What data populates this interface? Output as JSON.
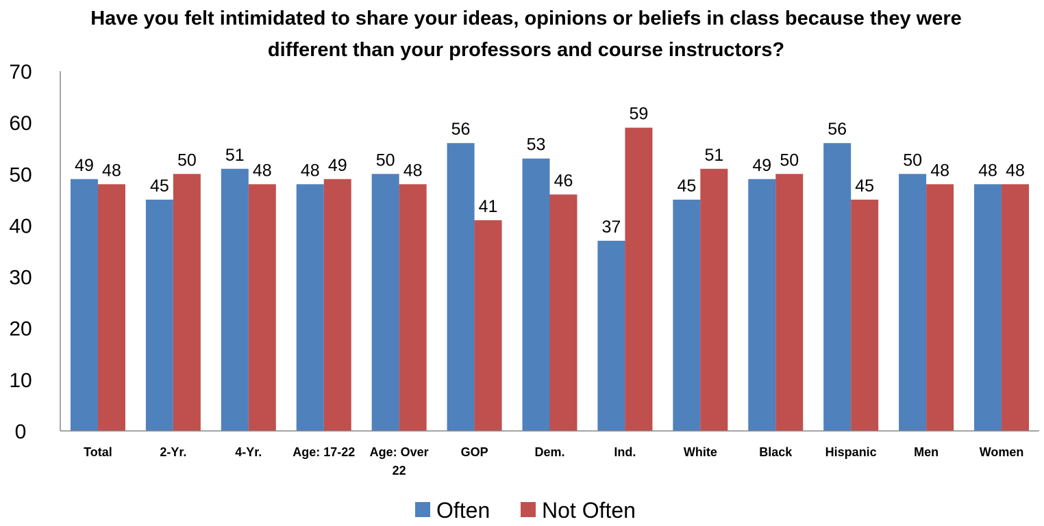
{
  "chart_data": {
    "type": "bar",
    "title_lines": [
      "Have you felt intimidated to share your ideas, opinions or beliefs in class because they were",
      "different  than your professors and course instructors?"
    ],
    "categories": [
      [
        "Total"
      ],
      [
        "2-Yr."
      ],
      [
        "4-Yr."
      ],
      [
        "Age: 17-22"
      ],
      [
        "Age: Over",
        "22"
      ],
      [
        "GOP"
      ],
      [
        "Dem."
      ],
      [
        "Ind."
      ],
      [
        "White"
      ],
      [
        "Black"
      ],
      [
        "Hispanic"
      ],
      [
        "Men"
      ],
      [
        "Women"
      ]
    ],
    "series": [
      {
        "name": "Often",
        "color": "#4F81BD",
        "values": [
          49,
          45,
          51,
          48,
          50,
          56,
          53,
          37,
          45,
          49,
          56,
          50,
          48
        ]
      },
      {
        "name": "Not Often",
        "color": "#C0504D",
        "values": [
          48,
          50,
          48,
          49,
          48,
          41,
          46,
          59,
          51,
          50,
          45,
          48,
          48
        ]
      }
    ],
    "ylim": [
      0,
      70
    ],
    "yticks": [
      0,
      10,
      20,
      30,
      40,
      50,
      60,
      70
    ],
    "grid": false,
    "legend_position": "bottom",
    "data_labels": true
  }
}
